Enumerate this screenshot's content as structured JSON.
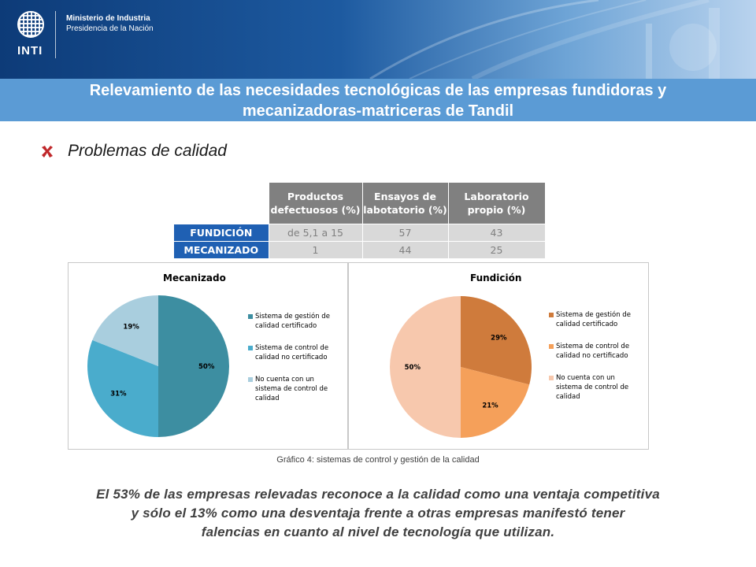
{
  "header": {
    "logo_text": "INTI",
    "ministry_line1": "Ministerio de Industria",
    "ministry_line2": "Presidencia de la Nación",
    "title_line1": "Relevamiento de las necesidades tecnológicas de las empresas fundidoras y",
    "title_line2": "mecanizadoras-matriceras  de Tandil"
  },
  "section": {
    "heading": "Problemas de calidad"
  },
  "table": {
    "col_headers": [
      [
        "Productos",
        "defectuosos (%)"
      ],
      [
        "Ensayos de",
        "labotatorio (%)"
      ],
      [
        "Laboratorio",
        "propio (%)"
      ]
    ],
    "rows": [
      {
        "label": "FUNDICIÓN",
        "values": [
          "de 5,1 a 15",
          "57",
          "43"
        ]
      },
      {
        "label": "MECANIZADO",
        "values": [
          "1",
          "44",
          "25"
        ]
      }
    ]
  },
  "chart_data": [
    {
      "type": "pie",
      "title": "Mecanizado",
      "categories": [
        "Sistema de gestión de calidad certificado",
        "Sistema de control de calidad no certificado",
        "No cuenta con un sistema de control de calidad"
      ],
      "values": [
        50,
        31,
        19
      ],
      "labels": [
        "50%",
        "31%",
        "19%"
      ],
      "colors": [
        "#3d8ea1",
        "#4aaccc",
        "#a9cede"
      ],
      "legend_position": "right"
    },
    {
      "type": "pie",
      "title": "Fundición",
      "categories": [
        "Sistema de gestión de calidad certificado",
        "Sistema de control de calidad no certificado",
        "No cuenta con un sistema de control de calidad"
      ],
      "values": [
        29,
        21,
        50
      ],
      "labels": [
        "29%",
        "21%",
        "50%"
      ],
      "colors": [
        "#cf7b3c",
        "#f5a05a",
        "#f7c8ad"
      ],
      "legend_position": "right"
    }
  ],
  "legend_lines": [
    [
      "Sistema de gestión de",
      "calidad certificado"
    ],
    [
      "Sistema de control de",
      "calidad no certificado"
    ],
    [
      "No cuenta con un",
      "sistema de control de",
      "calidad"
    ]
  ],
  "caption": "Gráfico 4: sistemas de control y gestión de la calidad",
  "footer": {
    "line1": "El 53% de las empresas relevadas reconoce a la calidad como una ventaja competitiva",
    "line2": "y sólo el 13% como una desventaja frente a otras empresas manifestó tener",
    "line3": "falencias en cuanto al nivel de tecnología que utilizan."
  },
  "colors": {
    "title_bar": "#5b9bd5",
    "row_header": "#1f60b3",
    "col_header": "#808080",
    "bullet": "#c0282b"
  }
}
